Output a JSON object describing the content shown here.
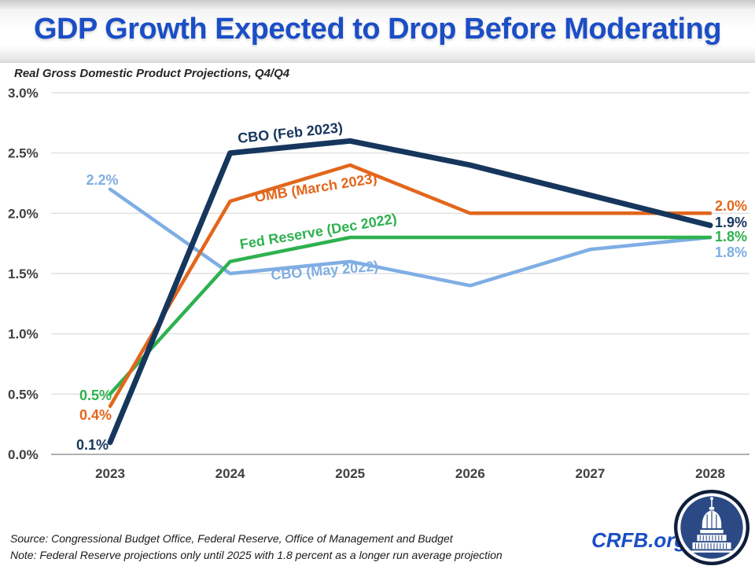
{
  "header": {
    "title": "GDP Growth Expected to Drop Before Moderating"
  },
  "subtitle": "Real Gross Domestic Product Projections, Q4/Q4",
  "footer": {
    "source": "Source: Congressional Budget Office, Federal Reserve, Office of Management and Budget",
    "note": "Note: Federal Reserve projections only until 2025 with 1.8 percent as a longer run average projection",
    "brand": "CRFB.org"
  },
  "colors": {
    "title_blue": "#1B4EC6",
    "axis_label": "#404040",
    "gridline": "#D9D9D9",
    "axis_line": "#A6A6A6",
    "cbo_feb_2023_navy": "#16365D",
    "omb_mar_2023_orange": "#E2661C",
    "fed_dec_2022_green": "#2EB14F",
    "cbo_may_2022_lightblue": "#7FAEE4",
    "logo_disc_blue": "#2B4A85",
    "logo_ring_navy": "#101E3C"
  },
  "chart_data": {
    "type": "line",
    "title": "GDP Growth Expected to Drop Before Moderating",
    "subtitle": "Real Gross Domestic Product Projections, Q4/Q4",
    "x": [
      "2023",
      "2024",
      "2025",
      "2026",
      "2027",
      "2028"
    ],
    "xlabel": "",
    "ylabel": "",
    "ylim": [
      0.0,
      3.0
    ],
    "ytick_labels": [
      "3.0%",
      "2.5%",
      "2.0%",
      "1.5%",
      "1.0%",
      "0.5%",
      "0.0%"
    ],
    "grid": true,
    "legend_position": "inline-labels-on-lines",
    "series": [
      {
        "name": "CBO (Feb 2023)",
        "color": "#16365D",
        "line_width": 7,
        "values": [
          0.1,
          2.5,
          2.6,
          2.4,
          2.15,
          1.9
        ],
        "start_label": "0.1%",
        "end_label": "1.9%"
      },
      {
        "name": "OMB (March 2023)",
        "color": "#E2661C",
        "line_width": 4.5,
        "values": [
          0.4,
          2.1,
          2.4,
          2.0,
          2.0,
          2.0
        ],
        "start_label": "0.4%",
        "end_label": "2.0%"
      },
      {
        "name": "Fed Reserve (Dec 2022)",
        "color": "#2EB14F",
        "line_width": 4.5,
        "values": [
          0.5,
          1.6,
          1.8,
          1.8,
          1.8,
          1.8
        ],
        "start_label": "0.5%",
        "end_label": "1.8%"
      },
      {
        "name": "CBO (May 2022)",
        "color": "#7FAEE4",
        "line_width": 4.5,
        "values": [
          2.2,
          1.5,
          1.6,
          1.4,
          1.7,
          1.8
        ],
        "start_label": "2.2%",
        "end_label": "1.8%"
      }
    ]
  }
}
